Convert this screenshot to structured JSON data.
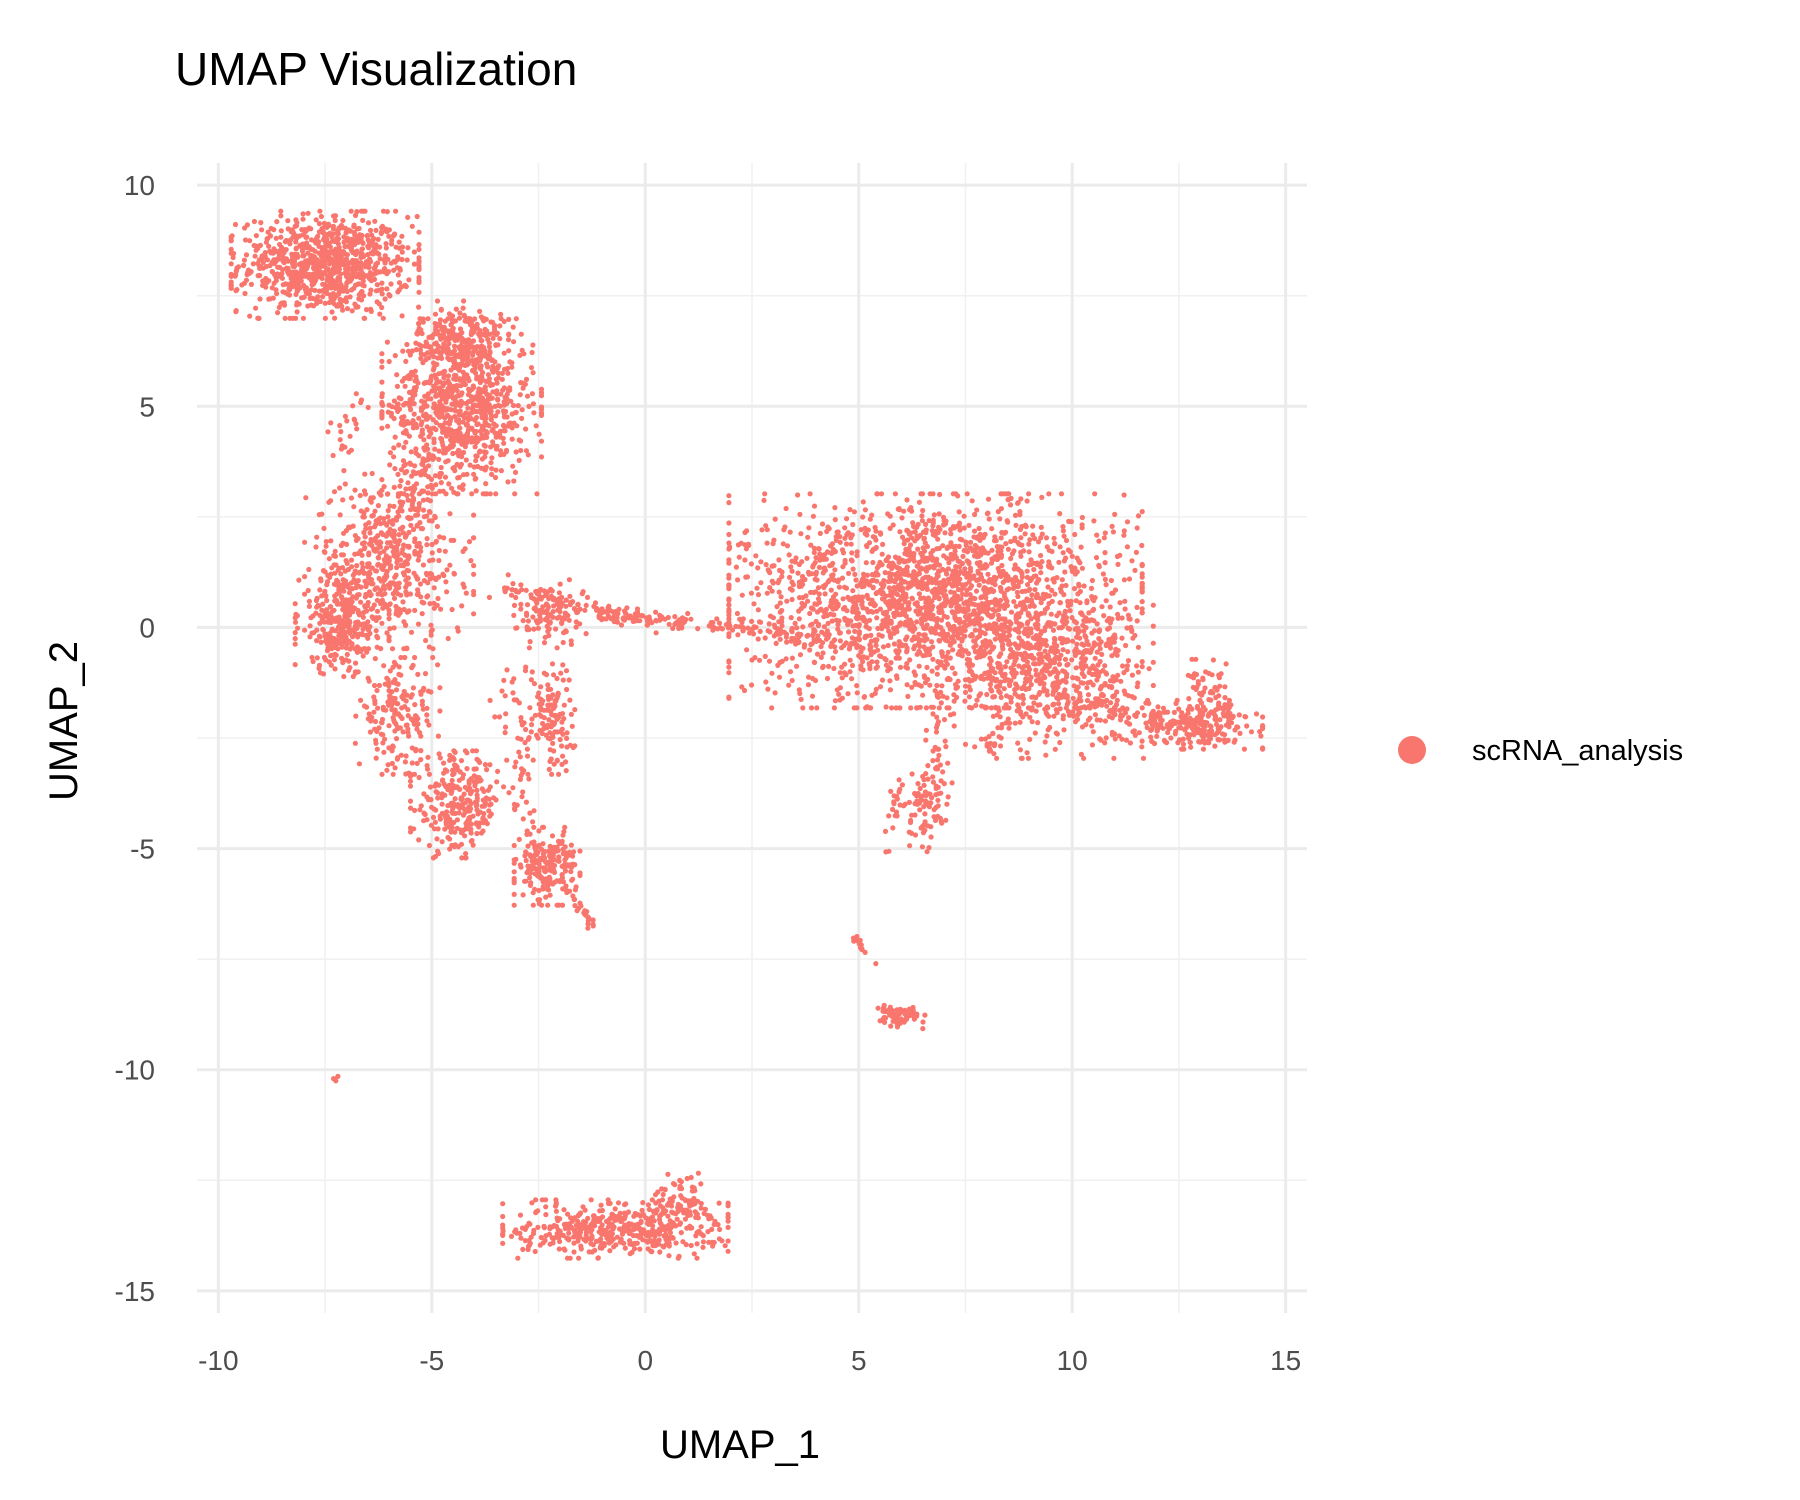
{
  "chart_data": {
    "type": "scatter",
    "title": "UMAP Visualization",
    "xlabel": "UMAP_1",
    "ylabel": "UMAP_2",
    "xlim": [
      -10.5,
      15.5
    ],
    "ylim": [
      -15.5,
      10.5
    ],
    "x_ticks": [
      -10,
      -5,
      0,
      5,
      10,
      15
    ],
    "x_tick_labels": [
      "-10",
      "-5",
      "0",
      "5",
      "10",
      "15"
    ],
    "y_ticks": [
      10,
      5,
      0,
      -5,
      -10,
      -15
    ],
    "y_tick_labels": [
      "10",
      "5",
      "0",
      "-5",
      "-10",
      "-15"
    ],
    "grid": true,
    "legend_position": "right",
    "series": [
      {
        "name": "scRNA_analysis",
        "color": "#F8766D",
        "clusters": [
          {
            "cx": -7.5,
            "cy": 8.2,
            "sx": 1.0,
            "sy": 0.55,
            "n": 900
          },
          {
            "cx": -4.3,
            "cy": 5.0,
            "sx": 0.85,
            "sy": 0.9,
            "n": 850
          },
          {
            "cx": -4.3,
            "cy": 6.5,
            "sx": 0.5,
            "sy": 0.4,
            "n": 200
          },
          {
            "cx": -6.0,
            "cy": 1.5,
            "sx": 0.9,
            "sy": 0.9,
            "n": 500
          },
          {
            "cx": -7.1,
            "cy": 0.1,
            "sx": 0.5,
            "sy": 0.55,
            "n": 300
          },
          {
            "cx": -5.8,
            "cy": -2.0,
            "sx": 0.45,
            "sy": 0.6,
            "n": 180
          },
          {
            "cx": -4.4,
            "cy": -4.0,
            "sx": 0.5,
            "sy": 0.55,
            "n": 260
          },
          {
            "cx": -2.3,
            "cy": -5.4,
            "sx": 0.35,
            "sy": 0.4,
            "n": 200
          },
          {
            "cx": -2.2,
            "cy": -2.0,
            "sx": 0.25,
            "sy": 0.6,
            "n": 120
          },
          {
            "cx": -2.2,
            "cy": 0.2,
            "sx": 0.4,
            "sy": 0.3,
            "n": 90
          },
          {
            "cx": 6.8,
            "cy": 0.6,
            "sx": 2.2,
            "sy": 1.1,
            "n": 2200
          },
          {
            "cx": 9.7,
            "cy": -1.2,
            "sx": 1.0,
            "sy": 0.8,
            "n": 500
          },
          {
            "cx": 12.7,
            "cy": -2.2,
            "sx": 0.8,
            "sy": 0.25,
            "n": 250
          },
          {
            "cx": 13.2,
            "cy": -1.6,
            "sx": 0.25,
            "sy": 0.4,
            "n": 60
          },
          {
            "cx": 6.6,
            "cy": -4.3,
            "sx": 0.25,
            "sy": 0.35,
            "n": 60
          },
          {
            "cx": 6.0,
            "cy": -8.8,
            "sx": 0.25,
            "sy": 0.15,
            "n": 50
          },
          {
            "cx": -0.7,
            "cy": -13.6,
            "sx": 1.2,
            "sy": 0.3,
            "n": 450
          },
          {
            "cx": 0.9,
            "cy": -13.0,
            "sx": 0.3,
            "sy": 0.3,
            "n": 80
          }
        ],
        "paths": [
          {
            "from": [
              -3.5,
              1.0
            ],
            "to": [
              -1.5,
              0.5
            ],
            "n": 60,
            "spread": 0.15
          },
          {
            "from": [
              -1.5,
              0.4
            ],
            "to": [
              0.0,
              0.2
            ],
            "n": 70,
            "spread": 0.1
          },
          {
            "from": [
              0.0,
              0.2
            ],
            "to": [
              2.5,
              0.0
            ],
            "n": 70,
            "spread": 0.1
          },
          {
            "from": [
              2.5,
              0.0
            ],
            "to": [
              4.0,
              -0.3
            ],
            "n": 45,
            "spread": 0.12
          },
          {
            "from": [
              -2.0,
              -5.8
            ],
            "to": [
              -1.1,
              -6.9
            ],
            "n": 25,
            "spread": 0.06
          },
          {
            "from": [
              -3.0,
              -1.0
            ],
            "to": [
              -3.0,
              -4.5
            ],
            "n": 60,
            "spread": 0.25
          },
          {
            "from": [
              -5.8,
              2.5
            ],
            "to": [
              -5.0,
              4.0
            ],
            "n": 60,
            "spread": 0.3
          },
          {
            "from": [
              -7.3,
              3.5
            ],
            "to": [
              -6.8,
              5.0
            ],
            "n": 25,
            "spread": 0.2
          },
          {
            "from": [
              7.0,
              -1.5
            ],
            "to": [
              6.7,
              -4.0
            ],
            "n": 60,
            "spread": 0.2
          },
          {
            "from": [
              6.0,
              -3.5
            ],
            "to": [
              5.6,
              -5.1
            ],
            "n": 20,
            "spread": 0.08
          },
          {
            "from": [
              4.9,
              -7.0
            ],
            "to": [
              5.1,
              -7.3
            ],
            "n": 12,
            "spread": 0.04
          },
          {
            "from": [
              5.5,
              -8.6
            ],
            "to": [
              6.3,
              -8.7
            ],
            "n": 20,
            "spread": 0.05
          },
          {
            "from": [
              8.5,
              -2.0
            ],
            "to": [
              8.0,
              -2.8
            ],
            "n": 25,
            "spread": 0.15
          }
        ],
        "points": [
          [
            -7.3,
            -10.2
          ],
          [
            -7.2,
            -10.15
          ],
          [
            -7.25,
            -10.25
          ],
          [
            5.4,
            -7.6
          ]
        ]
      }
    ]
  }
}
